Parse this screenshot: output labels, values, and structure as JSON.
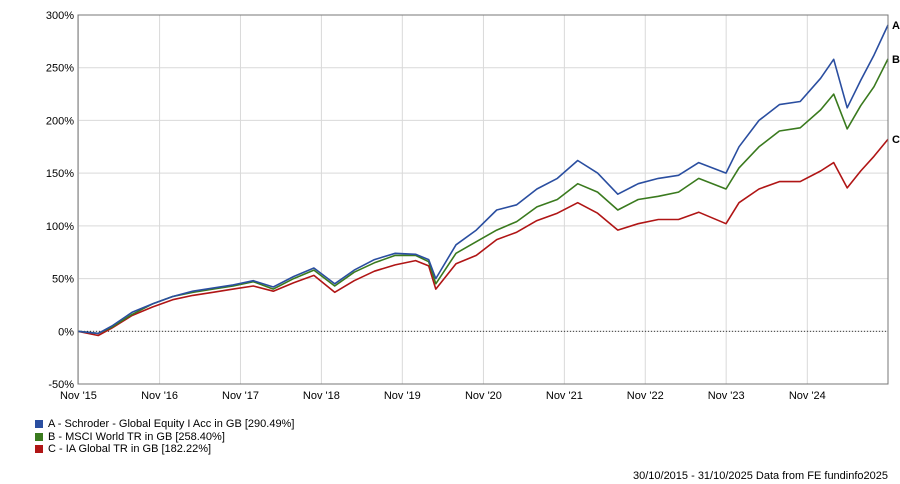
{
  "chart_data": {
    "type": "line",
    "ylim": [
      -50,
      300
    ],
    "y_ticks": [
      "-50%",
      "0%",
      "50%",
      "100%",
      "150%",
      "200%",
      "250%",
      "300%"
    ],
    "x_ticks": [
      "Nov '15",
      "Nov '16",
      "Nov '17",
      "Nov '18",
      "Nov '19",
      "Nov '20",
      "Nov '21",
      "Nov '22",
      "Nov '23",
      "Nov '24"
    ],
    "x_range": [
      "2015-10-30",
      "2025-10-31"
    ],
    "grid": "vertical and horizontal",
    "legend_position": "bottom-left",
    "series": [
      {
        "name": "A - Schroder - Global Equity I Acc in GB [290.49%]",
        "end_label": "A",
        "color": "#2a4ea0",
        "points": [
          [
            "2015-10-30",
            0
          ],
          [
            "2016-01-29",
            -2
          ],
          [
            "2016-03-31",
            5
          ],
          [
            "2016-06-30",
            18
          ],
          [
            "2016-09-30",
            26
          ],
          [
            "2016-12-30",
            33
          ],
          [
            "2017-03-31",
            38
          ],
          [
            "2017-06-30",
            41
          ],
          [
            "2017-09-29",
            44
          ],
          [
            "2017-12-29",
            48
          ],
          [
            "2018-03-29",
            42
          ],
          [
            "2018-06-29",
            52
          ],
          [
            "2018-09-28",
            60
          ],
          [
            "2018-12-31",
            45
          ],
          [
            "2019-03-29",
            58
          ],
          [
            "2019-06-28",
            68
          ],
          [
            "2019-09-30",
            74
          ],
          [
            "2019-12-31",
            73
          ],
          [
            "2020-02-28",
            68
          ],
          [
            "2020-03-31",
            50
          ],
          [
            "2020-06-30",
            82
          ],
          [
            "2020-09-30",
            96
          ],
          [
            "2020-12-31",
            115
          ],
          [
            "2021-03-31",
            120
          ],
          [
            "2021-06-30",
            135
          ],
          [
            "2021-09-30",
            145
          ],
          [
            "2021-12-31",
            162
          ],
          [
            "2022-03-31",
            150
          ],
          [
            "2022-06-30",
            130
          ],
          [
            "2022-09-30",
            140
          ],
          [
            "2022-12-30",
            145
          ],
          [
            "2023-03-31",
            148
          ],
          [
            "2023-06-30",
            160
          ],
          [
            "2023-10-31",
            150
          ],
          [
            "2023-12-29",
            175
          ],
          [
            "2024-03-28",
            200
          ],
          [
            "2024-06-28",
            215
          ],
          [
            "2024-09-30",
            218
          ],
          [
            "2024-12-31",
            240
          ],
          [
            "2025-02-28",
            258
          ],
          [
            "2025-04-30",
            212
          ],
          [
            "2025-06-30",
            238
          ],
          [
            "2025-08-29",
            262
          ],
          [
            "2025-10-31",
            290.49
          ]
        ]
      },
      {
        "name": "B - MSCI World TR in GB [258.40%]",
        "end_label": "B",
        "color": "#3a7a1e",
        "points": [
          [
            "2015-10-30",
            0
          ],
          [
            "2016-01-29",
            -2
          ],
          [
            "2016-03-31",
            4
          ],
          [
            "2016-06-30",
            16
          ],
          [
            "2016-09-30",
            26
          ],
          [
            "2016-12-30",
            33
          ],
          [
            "2017-03-31",
            37
          ],
          [
            "2017-06-30",
            40
          ],
          [
            "2017-09-29",
            43
          ],
          [
            "2017-12-29",
            47
          ],
          [
            "2018-03-29",
            40
          ],
          [
            "2018-06-29",
            50
          ],
          [
            "2018-09-28",
            58
          ],
          [
            "2018-12-31",
            43
          ],
          [
            "2019-03-29",
            56
          ],
          [
            "2019-06-28",
            65
          ],
          [
            "2019-09-30",
            72
          ],
          [
            "2019-12-31",
            72
          ],
          [
            "2020-02-28",
            66
          ],
          [
            "2020-03-31",
            45
          ],
          [
            "2020-06-30",
            74
          ],
          [
            "2020-09-30",
            85
          ],
          [
            "2020-12-31",
            96
          ],
          [
            "2021-03-31",
            104
          ],
          [
            "2021-06-30",
            118
          ],
          [
            "2021-09-30",
            125
          ],
          [
            "2021-12-31",
            140
          ],
          [
            "2022-03-31",
            132
          ],
          [
            "2022-06-30",
            115
          ],
          [
            "2022-09-30",
            125
          ],
          [
            "2022-12-30",
            128
          ],
          [
            "2023-03-31",
            132
          ],
          [
            "2023-06-30",
            145
          ],
          [
            "2023-10-31",
            135
          ],
          [
            "2023-12-29",
            155
          ],
          [
            "2024-03-28",
            175
          ],
          [
            "2024-06-28",
            190
          ],
          [
            "2024-09-30",
            193
          ],
          [
            "2024-12-31",
            210
          ],
          [
            "2025-02-28",
            225
          ],
          [
            "2025-04-30",
            192
          ],
          [
            "2025-06-30",
            214
          ],
          [
            "2025-08-29",
            232
          ],
          [
            "2025-10-31",
            258.4
          ]
        ]
      },
      {
        "name": "C - IA Global TR in GB [182.22%]",
        "end_label": "C",
        "color": "#b01515",
        "points": [
          [
            "2015-10-30",
            0
          ],
          [
            "2016-01-29",
            -4
          ],
          [
            "2016-03-31",
            3
          ],
          [
            "2016-06-30",
            15
          ],
          [
            "2016-09-30",
            23
          ],
          [
            "2016-12-30",
            30
          ],
          [
            "2017-03-31",
            34
          ],
          [
            "2017-06-30",
            37
          ],
          [
            "2017-09-29",
            40
          ],
          [
            "2017-12-29",
            43
          ],
          [
            "2018-03-29",
            38
          ],
          [
            "2018-06-29",
            46
          ],
          [
            "2018-09-28",
            53
          ],
          [
            "2018-12-31",
            37
          ],
          [
            "2019-03-29",
            48
          ],
          [
            "2019-06-28",
            57
          ],
          [
            "2019-09-30",
            63
          ],
          [
            "2019-12-31",
            67
          ],
          [
            "2020-02-28",
            62
          ],
          [
            "2020-03-31",
            40
          ],
          [
            "2020-06-30",
            64
          ],
          [
            "2020-09-30",
            72
          ],
          [
            "2020-12-31",
            87
          ],
          [
            "2021-03-31",
            94
          ],
          [
            "2021-06-30",
            105
          ],
          [
            "2021-09-30",
            112
          ],
          [
            "2021-12-31",
            122
          ],
          [
            "2022-03-31",
            112
          ],
          [
            "2022-06-30",
            96
          ],
          [
            "2022-09-30",
            102
          ],
          [
            "2022-12-30",
            106
          ],
          [
            "2023-03-31",
            106
          ],
          [
            "2023-06-30",
            113
          ],
          [
            "2023-10-31",
            102
          ],
          [
            "2023-12-29",
            122
          ],
          [
            "2024-03-28",
            135
          ],
          [
            "2024-06-28",
            142
          ],
          [
            "2024-09-30",
            142
          ],
          [
            "2024-12-31",
            152
          ],
          [
            "2025-02-28",
            160
          ],
          [
            "2025-04-30",
            136
          ],
          [
            "2025-06-30",
            152
          ],
          [
            "2025-08-29",
            166
          ],
          [
            "2025-10-31",
            182.22
          ]
        ]
      }
    ]
  },
  "footer": "30/10/2015 - 31/10/2025 Data from FE fundinfo2025"
}
